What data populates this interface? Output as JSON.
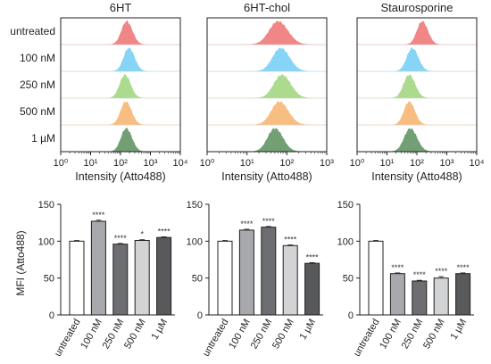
{
  "chart_data": [
    {
      "type": "area",
      "kind": "flow-cytometry-histogram",
      "title": "6HT",
      "xlabel": "Intensity (Atto488)",
      "xscale": "log",
      "xlim": [
        1,
        10000
      ],
      "xticks": [
        1,
        10,
        100,
        1000,
        10000
      ],
      "series": [
        {
          "name": "untreated",
          "color": "#f08080",
          "peak": 160,
          "width": 0.17
        },
        {
          "name": "100 nM",
          "color": "#7fd3f5",
          "peak": 190,
          "width": 0.17
        },
        {
          "name": "250 nM",
          "color": "#a8d98a",
          "peak": 140,
          "width": 0.17
        },
        {
          "name": "500 nM",
          "color": "#f8b97a",
          "peak": 150,
          "width": 0.17
        },
        {
          "name": "1 µM",
          "color": "#6b9a6e",
          "peak": 155,
          "width": 0.17
        }
      ]
    },
    {
      "type": "area",
      "kind": "flow-cytometry-histogram",
      "title": "6HT-chol",
      "xlabel": "Intensity (Atto488)",
      "xscale": "log",
      "xlim": [
        1,
        1000
      ],
      "xticks": [
        1,
        10,
        100,
        1000
      ],
      "series": [
        {
          "name": "untreated",
          "color": "#f08080",
          "peak": 60,
          "width": 0.22
        },
        {
          "name": "100 nM",
          "color": "#7fd3f5",
          "peak": 70,
          "width": 0.2
        },
        {
          "name": "250 nM",
          "color": "#a8d98a",
          "peak": 75,
          "width": 0.2
        },
        {
          "name": "500 nM",
          "color": "#f8b97a",
          "peak": 65,
          "width": 0.2
        },
        {
          "name": "1 µM",
          "color": "#6b9a6e",
          "peak": 50,
          "width": 0.18
        }
      ]
    },
    {
      "type": "area",
      "kind": "flow-cytometry-histogram",
      "title": "Staurosporine",
      "xlabel": "Intensity (Atto488)",
      "xscale": "log",
      "xlim": [
        1,
        10000
      ],
      "xticks": [
        1,
        10,
        100,
        1000,
        10000
      ],
      "series": [
        {
          "name": "untreated",
          "color": "#f08080",
          "peak": 150,
          "width": 0.17
        },
        {
          "name": "100 nM",
          "color": "#7fd3f5",
          "peak": 70,
          "width": 0.18
        },
        {
          "name": "250 nM",
          "color": "#a8d98a",
          "peak": 55,
          "width": 0.18
        },
        {
          "name": "500 nM",
          "color": "#f8b97a",
          "peak": 55,
          "width": 0.17
        },
        {
          "name": "1 µM",
          "color": "#6b9a6e",
          "peak": 60,
          "width": 0.2
        }
      ]
    },
    {
      "type": "bar",
      "ylabel": "MFI (Atto488)",
      "ylim": [
        0,
        150
      ],
      "yticks": [
        0,
        50,
        100,
        150
      ],
      "categories": [
        "untreated",
        "100 nM",
        "250 nM",
        "500 nM",
        "1 µM"
      ],
      "values": [
        100,
        127,
        96,
        101,
        105
      ],
      "errors": [
        1,
        1.5,
        1,
        1,
        1
      ],
      "significance": [
        "",
        "****",
        "****",
        "*",
        "****"
      ],
      "colors": [
        "#ffffff",
        "#a7a9ac",
        "#6d6e71",
        "#d1d3d4",
        "#58595b"
      ]
    },
    {
      "type": "bar",
      "ylim": [
        0,
        150
      ],
      "yticks": [
        0,
        50,
        100,
        150
      ],
      "categories": [
        "untreated",
        "100 nM",
        "250 nM",
        "500 nM",
        "1 µM"
      ],
      "values": [
        100,
        115,
        119,
        94,
        70
      ],
      "errors": [
        1,
        1.2,
        1,
        1,
        1
      ],
      "significance": [
        "",
        "****",
        "****",
        "****",
        "****"
      ],
      "colors": [
        "#ffffff",
        "#a7a9ac",
        "#6d6e71",
        "#d1d3d4",
        "#58595b"
      ]
    },
    {
      "type": "bar",
      "ylim": [
        0,
        150
      ],
      "yticks": [
        0,
        50,
        100,
        150
      ],
      "categories": [
        "untreated",
        "100 nM",
        "250 nM",
        "500 nM",
        "1 µM"
      ],
      "values": [
        100,
        56,
        46,
        50,
        56
      ],
      "errors": [
        1,
        1,
        1,
        2,
        1
      ],
      "significance": [
        "",
        "****",
        "****",
        "****",
        "****"
      ],
      "colors": [
        "#ffffff",
        "#a7a9ac",
        "#6d6e71",
        "#d1d3d4",
        "#58595b"
      ]
    }
  ]
}
